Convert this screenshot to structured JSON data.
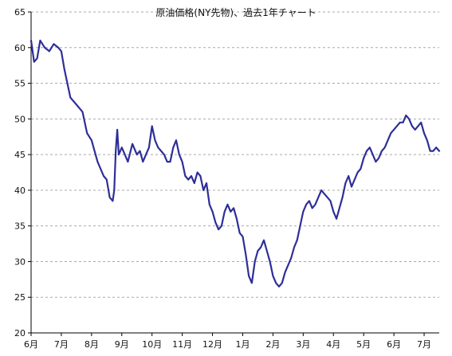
{
  "chart_data": {
    "type": "line",
    "title": "原油価格(NY先物)、過去1年チャート",
    "xlabel": "",
    "ylabel": "",
    "ylim": [
      20,
      65
    ],
    "yticks": [
      20,
      25,
      30,
      35,
      40,
      45,
      50,
      55,
      60,
      65
    ],
    "x_tick_labels": [
      "6月",
      "7月",
      "8月",
      "9月",
      "10月",
      "11月",
      "12月",
      "1月",
      "2月",
      "3月",
      "4月",
      "5月",
      "6月",
      "7月"
    ],
    "grid": {
      "y": true,
      "x": false
    },
    "colors": {
      "line": "#2e2e99",
      "grid": "#aaaaaa",
      "axis": "#000000"
    },
    "series": [
      {
        "name": "",
        "x": [
          0,
          0.1,
          0.2,
          0.3,
          0.45,
          0.6,
          0.75,
          0.9,
          1,
          1.1,
          1.3,
          1.5,
          1.7,
          1.85,
          2,
          2.1,
          2.2,
          2.3,
          2.4,
          2.5,
          2.6,
          2.7,
          2.75,
          2.8,
          2.85,
          2.9,
          3,
          3.1,
          3.2,
          3.35,
          3.5,
          3.6,
          3.7,
          3.8,
          3.9,
          4,
          4.1,
          4.2,
          4.3,
          4.4,
          4.5,
          4.6,
          4.7,
          4.8,
          4.9,
          5,
          5.1,
          5.2,
          5.3,
          5.4,
          5.5,
          5.6,
          5.7,
          5.8,
          5.9,
          6,
          6.1,
          6.2,
          6.3,
          6.4,
          6.5,
          6.6,
          6.7,
          6.8,
          6.9,
          7,
          7.1,
          7.2,
          7.3,
          7.4,
          7.5,
          7.6,
          7.7,
          7.8,
          7.9,
          8,
          8.1,
          8.2,
          8.3,
          8.4,
          8.5,
          8.6,
          8.7,
          8.8,
          8.9,
          9,
          9.1,
          9.2,
          9.3,
          9.4,
          9.5,
          9.6,
          9.7,
          9.8,
          9.9,
          10,
          10.1,
          10.2,
          10.3,
          10.4,
          10.5,
          10.6,
          10.7,
          10.8,
          10.9,
          11,
          11.1,
          11.2,
          11.3,
          11.4,
          11.5,
          11.6,
          11.7,
          11.8,
          11.9,
          12,
          12.1,
          12.2,
          12.3,
          12.4,
          12.5,
          12.6,
          12.7,
          12.8,
          12.9,
          13,
          13.1,
          13.2,
          13.3,
          13.4,
          13.5
        ],
        "values": [
          61,
          58,
          58.5,
          61,
          60,
          59.5,
          60.5,
          60,
          59.5,
          57,
          53,
          52,
          51,
          48,
          47,
          45.5,
          44,
          43,
          42,
          41.5,
          39,
          38.5,
          40,
          45.5,
          48.5,
          45,
          46,
          45,
          44,
          46.5,
          45,
          45.5,
          44,
          45,
          46,
          49,
          47,
          46,
          45.5,
          45,
          44,
          44,
          46,
          47,
          45,
          44,
          42,
          41.5,
          42,
          41,
          42.5,
          42,
          40,
          41,
          38,
          37,
          35.5,
          34.5,
          35,
          37,
          38,
          37,
          37.5,
          36,
          34,
          33.5,
          31,
          28,
          27,
          30,
          31.5,
          32,
          33,
          31.5,
          30,
          28,
          27,
          26.5,
          27,
          28.5,
          29.5,
          30.5,
          32,
          33,
          35,
          37,
          38,
          38.5,
          37.5,
          38,
          39,
          40,
          39.5,
          39,
          38.5,
          37,
          36,
          37.5,
          39,
          41,
          42,
          40.5,
          41.5,
          42.5,
          43,
          44.5,
          45.5,
          46,
          45,
          44,
          44.5,
          45.5,
          46,
          47,
          48,
          48.5,
          49,
          49.5,
          49.5,
          50.5,
          50,
          49,
          48.5,
          49,
          49.5,
          48,
          47,
          45.5,
          45.5,
          46,
          45.5
        ]
      }
    ]
  }
}
